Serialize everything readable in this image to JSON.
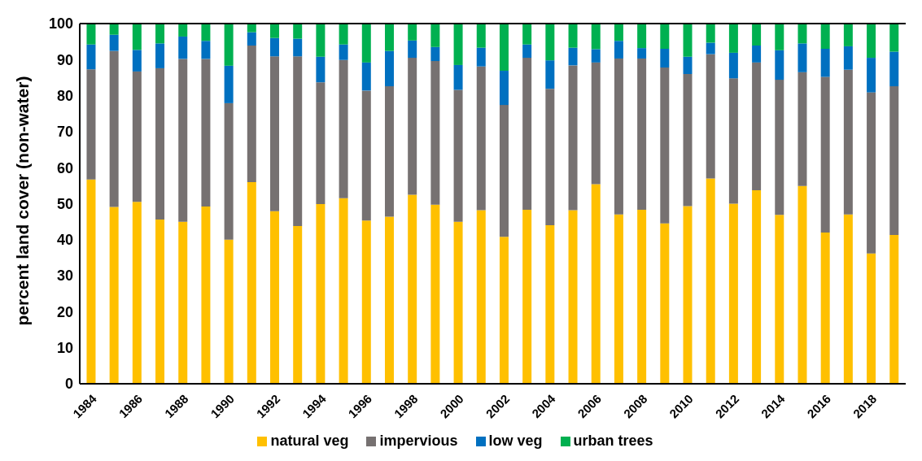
{
  "chart_data": {
    "type": "bar",
    "stacked": true,
    "ylabel": "percent land cover (non-water)",
    "categories": [
      "1984",
      null,
      "1986",
      null,
      "1988",
      null,
      "1990",
      null,
      "1992",
      null,
      "1994",
      null,
      "1996",
      null,
      "1998",
      null,
      "2000",
      null,
      "2002",
      null,
      "2004",
      null,
      "2006",
      null,
      "2008",
      null,
      "2010",
      null,
      "2012",
      null,
      "2014",
      null,
      "2016",
      null,
      "2018",
      null
    ],
    "series": [
      {
        "name": "natural veg",
        "color": "#ffc000",
        "values": [
          56.7,
          49.1,
          50.5,
          45.6,
          45.0,
          49.2,
          40.0,
          56.0,
          47.9,
          43.8,
          49.9,
          51.5,
          45.3,
          46.4,
          52.5,
          49.7,
          45.0,
          48.2,
          40.8,
          48.3,
          44.0,
          48.2,
          55.4,
          47.0,
          48.3,
          44.5,
          49.3,
          57.0,
          50.0,
          53.7,
          46.9,
          54.9,
          42.0,
          47.0,
          36.2,
          41.3
        ]
      },
      {
        "name": "impervious",
        "color": "#767171",
        "values": [
          30.6,
          43.3,
          36.2,
          42.0,
          45.2,
          41.0,
          37.9,
          37.9,
          43.0,
          47.1,
          33.8,
          38.4,
          36.1,
          36.2,
          38.0,
          39.9,
          36.6,
          39.9,
          36.6,
          42.2,
          37.9,
          40.2,
          33.8,
          43.3,
          42.0,
          43.3,
          36.7,
          34.5,
          34.8,
          35.5,
          37.5,
          31.6,
          43.2,
          40.2,
          44.7,
          41.3
        ]
      },
      {
        "name": "low veg",
        "color": "#0070c0",
        "values": [
          6.9,
          4.5,
          6.0,
          6.9,
          6.2,
          5.0,
          10.4,
          3.7,
          5.1,
          4.9,
          7.1,
          4.3,
          7.8,
          9.8,
          4.8,
          3.9,
          6.9,
          5.2,
          9.5,
          3.7,
          7.9,
          4.9,
          3.7,
          4.9,
          2.9,
          5.2,
          4.8,
          3.2,
          7.1,
          4.7,
          8.2,
          8.0,
          7.8,
          6.5,
          9.6,
          9.6
        ]
      },
      {
        "name": "urban trees",
        "color": "#00b050",
        "values": [
          5.8,
          3.1,
          7.3,
          5.5,
          3.6,
          4.8,
          11.7,
          2.4,
          4.0,
          4.2,
          9.2,
          5.8,
          10.8,
          7.6,
          4.7,
          6.5,
          11.5,
          6.7,
          13.1,
          5.8,
          10.2,
          6.7,
          7.1,
          4.8,
          6.8,
          7.0,
          9.2,
          5.3,
          8.1,
          6.1,
          7.4,
          5.5,
          7.0,
          6.3,
          9.5,
          7.8
        ]
      }
    ],
    "ylim": [
      0,
      100
    ],
    "yticks": [
      0,
      10,
      20,
      30,
      40,
      50,
      60,
      70,
      80,
      90,
      100
    ],
    "grid": false,
    "legend": "bottom"
  }
}
